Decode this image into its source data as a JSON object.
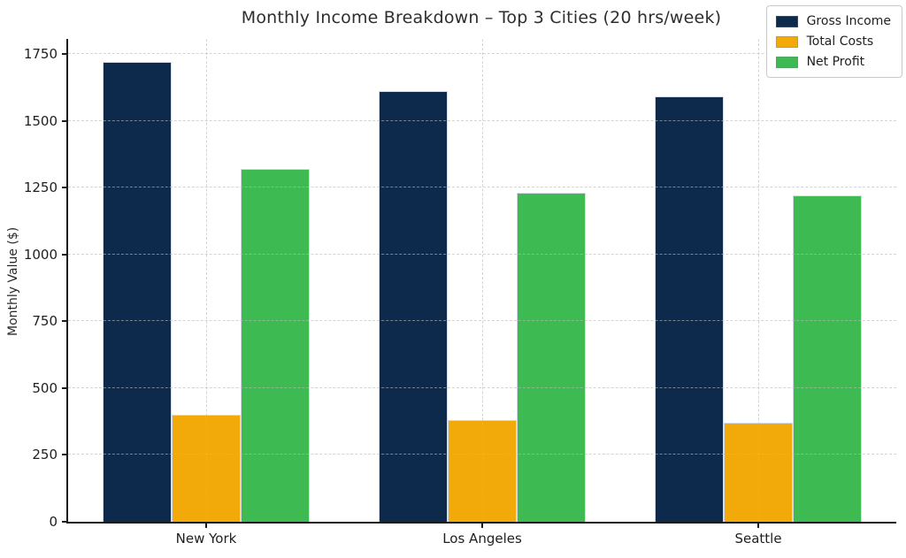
{
  "chart_data": {
    "type": "bar",
    "title": "Monthly Income Breakdown – Top 3 Cities (20 hrs/week)",
    "xlabel": "",
    "ylabel": "Monthly Value ($)",
    "categories": [
      "New York",
      "Los Angeles",
      "Seattle"
    ],
    "series": [
      {
        "name": "Gross Income",
        "color": "#0d2a4c",
        "values": [
          1720,
          1610,
          1590
        ]
      },
      {
        "name": "Total Costs",
        "color": "#f2a90a",
        "values": [
          400,
          380,
          370
        ]
      },
      {
        "name": "Net Profit",
        "color": "#3dba52",
        "values": [
          1320,
          1230,
          1220
        ]
      }
    ],
    "ylim": [
      0,
      1806
    ],
    "yticks": [
      0,
      250,
      500,
      750,
      1000,
      1250,
      1500,
      1750
    ],
    "grid": true,
    "grid_style": "dashed",
    "legend_position": "upper right",
    "bar_group_width": 0.75
  }
}
